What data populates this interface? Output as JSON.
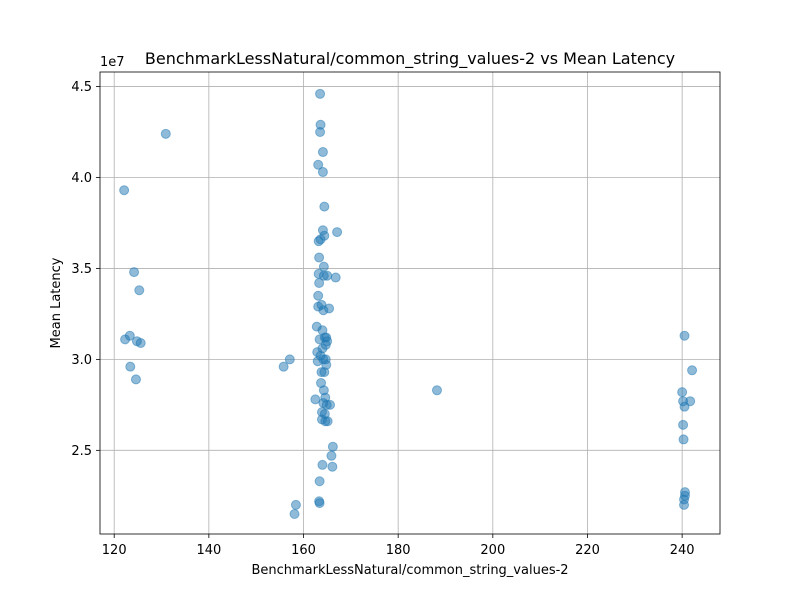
{
  "chart_data": {
    "type": "scatter",
    "title": "BenchmarkLessNatural/common_string_values-2 vs Mean Latency",
    "xlabel": "BenchmarkLessNatural/common_string_values-2",
    "ylabel": "Mean Latency",
    "y_offset_label": "1e7",
    "xlim": [
      117,
      248
    ],
    "ylim": [
      2.04,
      4.58
    ],
    "x_ticks": [
      120,
      140,
      160,
      180,
      200,
      220,
      240
    ],
    "y_ticks": [
      2.5,
      3.0,
      3.5,
      4.0,
      4.5
    ],
    "x_tick_labels": [
      "120",
      "140",
      "160",
      "180",
      "200",
      "220",
      "240"
    ],
    "y_tick_labels": [
      "2.5",
      "3.0",
      "3.5",
      "4.0",
      "4.5"
    ],
    "grid": true,
    "point_color": "#1f77b4",
    "point_alpha": 0.5,
    "points": [
      {
        "x": 122.1,
        "y": 3.93
      },
      {
        "x": 122.3,
        "y": 3.11
      },
      {
        "x": 123.3,
        "y": 3.13
      },
      {
        "x": 123.4,
        "y": 2.96
      },
      {
        "x": 124.2,
        "y": 3.48
      },
      {
        "x": 124.6,
        "y": 2.89
      },
      {
        "x": 124.8,
        "y": 3.1
      },
      {
        "x": 125.3,
        "y": 3.38
      },
      {
        "x": 125.6,
        "y": 3.09
      },
      {
        "x": 130.9,
        "y": 4.24
      },
      {
        "x": 155.8,
        "y": 2.96
      },
      {
        "x": 157.1,
        "y": 3.0
      },
      {
        "x": 158.1,
        "y": 2.15
      },
      {
        "x": 158.4,
        "y": 2.2
      },
      {
        "x": 162.5,
        "y": 2.78
      },
      {
        "x": 162.8,
        "y": 3.18
      },
      {
        "x": 162.9,
        "y": 3.04
      },
      {
        "x": 163.0,
        "y": 2.99
      },
      {
        "x": 163.1,
        "y": 3.35
      },
      {
        "x": 163.1,
        "y": 3.29
      },
      {
        "x": 163.1,
        "y": 4.07
      },
      {
        "x": 163.2,
        "y": 3.65
      },
      {
        "x": 163.2,
        "y": 3.47
      },
      {
        "x": 163.3,
        "y": 3.42
      },
      {
        "x": 163.3,
        "y": 3.56
      },
      {
        "x": 163.3,
        "y": 2.22
      },
      {
        "x": 163.4,
        "y": 2.21
      },
      {
        "x": 163.4,
        "y": 2.33
      },
      {
        "x": 163.4,
        "y": 3.11
      },
      {
        "x": 163.5,
        "y": 4.46
      },
      {
        "x": 163.5,
        "y": 4.25
      },
      {
        "x": 163.6,
        "y": 4.29
      },
      {
        "x": 163.6,
        "y": 3.66
      },
      {
        "x": 163.6,
        "y": 3.02
      },
      {
        "x": 163.7,
        "y": 2.87
      },
      {
        "x": 163.8,
        "y": 2.93
      },
      {
        "x": 163.8,
        "y": 3.3
      },
      {
        "x": 163.9,
        "y": 2.71
      },
      {
        "x": 163.9,
        "y": 2.67
      },
      {
        "x": 164.0,
        "y": 3.06
      },
      {
        "x": 164.0,
        "y": 3.16
      },
      {
        "x": 164.0,
        "y": 2.42
      },
      {
        "x": 164.1,
        "y": 4.14
      },
      {
        "x": 164.1,
        "y": 4.03
      },
      {
        "x": 164.1,
        "y": 3.71
      },
      {
        "x": 164.2,
        "y": 2.76
      },
      {
        "x": 164.2,
        "y": 3.27
      },
      {
        "x": 164.2,
        "y": 3.0
      },
      {
        "x": 164.3,
        "y": 2.83
      },
      {
        "x": 164.3,
        "y": 3.51
      },
      {
        "x": 164.3,
        "y": 3.46
      },
      {
        "x": 164.4,
        "y": 3.84
      },
      {
        "x": 164.4,
        "y": 3.68
      },
      {
        "x": 164.4,
        "y": 2.93
      },
      {
        "x": 164.5,
        "y": 3.12
      },
      {
        "x": 164.5,
        "y": 2.7
      },
      {
        "x": 164.6,
        "y": 2.66
      },
      {
        "x": 164.6,
        "y": 2.79
      },
      {
        "x": 164.7,
        "y": 3.08
      },
      {
        "x": 164.7,
        "y": 3.0
      },
      {
        "x": 164.8,
        "y": 2.97
      },
      {
        "x": 164.8,
        "y": 3.12
      },
      {
        "x": 164.9,
        "y": 2.75
      },
      {
        "x": 165.0,
        "y": 3.1
      },
      {
        "x": 165.0,
        "y": 3.46
      },
      {
        "x": 165.1,
        "y": 2.66
      },
      {
        "x": 165.4,
        "y": 3.28
      },
      {
        "x": 165.6,
        "y": 2.75
      },
      {
        "x": 165.9,
        "y": 2.47
      },
      {
        "x": 166.1,
        "y": 2.41
      },
      {
        "x": 166.2,
        "y": 2.52
      },
      {
        "x": 166.8,
        "y": 3.45
      },
      {
        "x": 167.1,
        "y": 3.7
      },
      {
        "x": 188.2,
        "y": 2.83
      },
      {
        "x": 240.0,
        "y": 2.82
      },
      {
        "x": 240.2,
        "y": 2.77
      },
      {
        "x": 240.2,
        "y": 2.64
      },
      {
        "x": 240.3,
        "y": 2.56
      },
      {
        "x": 240.4,
        "y": 2.2
      },
      {
        "x": 240.4,
        "y": 2.23
      },
      {
        "x": 240.5,
        "y": 3.13
      },
      {
        "x": 240.5,
        "y": 2.74
      },
      {
        "x": 240.6,
        "y": 2.25
      },
      {
        "x": 240.6,
        "y": 2.27
      },
      {
        "x": 241.7,
        "y": 2.77
      },
      {
        "x": 242.1,
        "y": 2.94
      }
    ]
  }
}
